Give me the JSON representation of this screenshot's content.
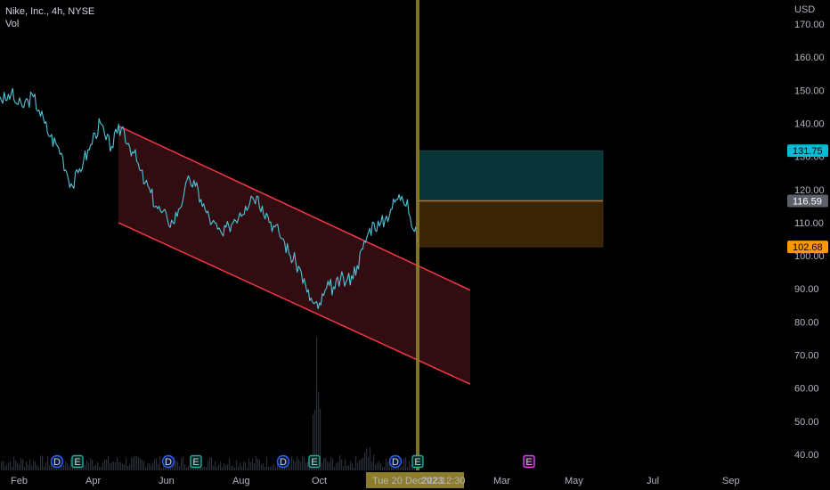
{
  "header": {
    "symbol_line": "Nike, Inc., 4h, NYSE",
    "volume_label": "Vol"
  },
  "chart_data": {
    "type": "line",
    "currency": "USD",
    "y_ticks": [
      "170.00",
      "160.00",
      "150.00",
      "140.00",
      "130.00",
      "120.00",
      "110.00",
      "100.00",
      "90.00",
      "80.00",
      "70.00",
      "60.00",
      "50.00",
      "40.00"
    ],
    "y_tick_values": [
      170,
      160,
      150,
      140,
      130,
      120,
      110,
      100,
      90,
      80,
      70,
      60,
      50,
      40
    ],
    "ylim": [
      37,
      175
    ],
    "x_ticks": [
      "Feb",
      "Apr",
      "Jun",
      "Aug",
      "Oct",
      "2023",
      "Mar",
      "May",
      "Jul",
      "Sep"
    ],
    "crosshair_time": "Tue 20 Dec '22  12:30",
    "price_tags": [
      {
        "label": "131.75",
        "value": 131.75,
        "color": "#00bcd4",
        "text_color": "#000000"
      },
      {
        "label": "116.59",
        "value": 116.59,
        "color": "#5d606b",
        "text_color": "#ffffff"
      },
      {
        "label": "102.68",
        "value": 102.68,
        "color": "#ff9800",
        "text_color": "#000000"
      }
    ],
    "position": {
      "profit_target": 131.75,
      "entry": 116.59,
      "stop": 102.68
    },
    "channel": {
      "upper_start": 139.2,
      "upper_end": 89.6,
      "lower_start": 110.0,
      "lower_end": 61.2
    },
    "price_series": [
      148,
      147,
      149,
      146,
      145,
      147,
      148,
      144,
      140,
      136,
      134,
      131,
      125,
      121,
      125,
      129,
      132,
      137,
      140,
      135,
      133,
      137,
      139,
      134,
      131,
      126,
      122,
      119,
      115,
      113,
      111,
      110,
      114,
      119,
      123,
      121,
      117,
      113,
      110,
      108,
      106,
      109,
      111,
      113,
      115,
      118,
      118,
      115,
      112,
      109,
      107,
      104,
      100,
      98,
      95,
      89,
      86,
      84,
      88,
      91,
      90,
      93,
      92,
      94,
      97,
      102,
      107,
      110,
      109,
      111,
      114,
      117,
      118,
      117,
      108,
      105
    ],
    "events": [
      {
        "label": "D",
        "type": "dividend",
        "color": "#2962ff"
      },
      {
        "label": "E",
        "type": "earnings",
        "color": "#26a69a"
      },
      {
        "label": "D",
        "type": "dividend",
        "color": "#2962ff"
      },
      {
        "label": "E",
        "type": "earnings",
        "color": "#26a69a"
      },
      {
        "label": "D",
        "type": "dividend",
        "color": "#2962ff"
      },
      {
        "label": "E",
        "type": "earnings",
        "color": "#26a69a"
      },
      {
        "label": "D",
        "type": "dividend",
        "color": "#2962ff"
      },
      {
        "label": "E",
        "type": "earnings",
        "color": "#26a69a"
      },
      {
        "label": "E",
        "type": "earnings-future",
        "color": "#e040fb"
      }
    ],
    "colors": {
      "price_line": "#4fc3d7",
      "channel_line": "#f23645",
      "channel_fill": "#3a0f14",
      "profit_fill": "#0a3337",
      "stop_fill": "#3b2405",
      "crosshair": "#8d7d2a",
      "volume": "#2a2e39"
    }
  }
}
